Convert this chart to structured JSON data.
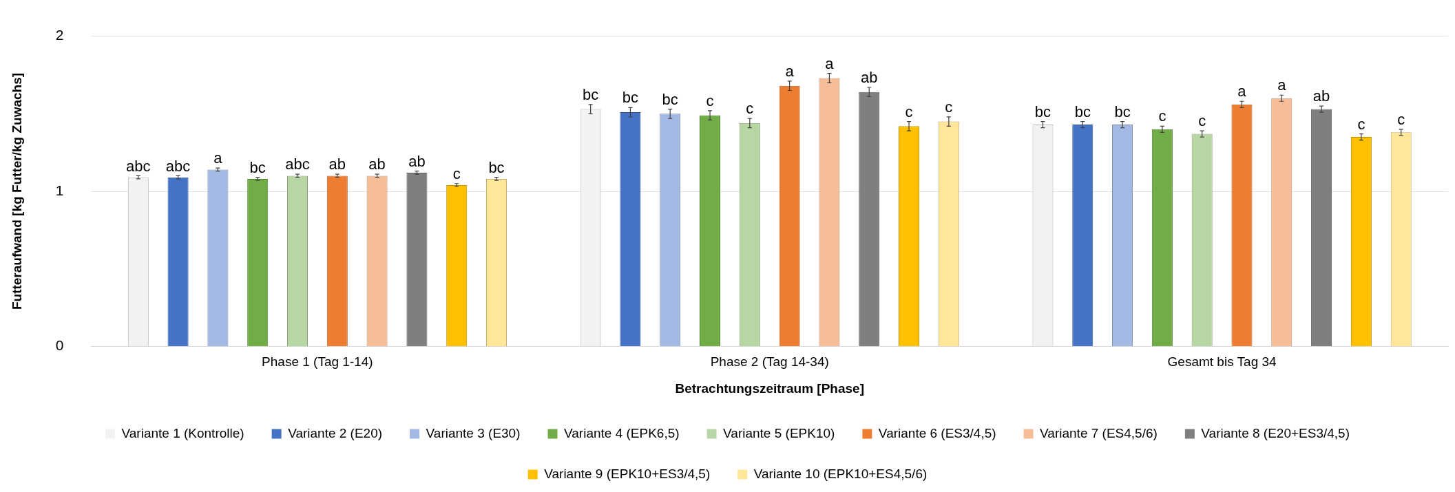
{
  "chart_data": {
    "type": "bar",
    "xlabel": "Betrachtungszeitraum [Phase]",
    "ylabel": "Futteraufwand [kg Futter/kg Zuwachs]",
    "categories": [
      "Phase 1 (Tag 1-14)",
      "Phase 2 (Tag 14-34)",
      "Gesamt bis Tag 34"
    ],
    "ylim": [
      0,
      2
    ],
    "yticks": [
      0,
      1,
      2
    ],
    "grid": "y",
    "legend": "bottom",
    "series": [
      {
        "name": "Variante 1 (Kontrolle)",
        "color": "#f2f2f2",
        "values": [
          1.09,
          1.53,
          1.43
        ],
        "errors": [
          0.01,
          0.03,
          0.02
        ],
        "value_labels": [
          "abc",
          "bc",
          "bc"
        ]
      },
      {
        "name": "Variante 2 (E20)",
        "color": "#4472c4",
        "values": [
          1.09,
          1.51,
          1.43
        ],
        "errors": [
          0.01,
          0.03,
          0.02
        ],
        "value_labels": [
          "abc",
          "bc",
          "bc"
        ]
      },
      {
        "name": "Variante 3 (E30)",
        "color": "#a3b8e2",
        "values": [
          1.14,
          1.5,
          1.43
        ],
        "errors": [
          0.01,
          0.03,
          0.02
        ],
        "value_labels": [
          "a",
          "bc",
          "bc"
        ]
      },
      {
        "name": "Variante 4 (EPK6,5)",
        "color": "#70ad47",
        "values": [
          1.08,
          1.49,
          1.4
        ],
        "errors": [
          0.01,
          0.03,
          0.02
        ],
        "value_labels": [
          "bc",
          "c",
          "c"
        ]
      },
      {
        "name": "Variante 5 (EPK10)",
        "color": "#b8d6a3",
        "values": [
          1.1,
          1.44,
          1.37
        ],
        "errors": [
          0.01,
          0.03,
          0.02
        ],
        "value_labels": [
          "abc",
          "c",
          "c"
        ]
      },
      {
        "name": "Variante 6 (ES3/4,5)",
        "color": "#ed7d31",
        "values": [
          1.1,
          1.68,
          1.56
        ],
        "errors": [
          0.01,
          0.03,
          0.02
        ],
        "value_labels": [
          "ab",
          "a",
          "a"
        ]
      },
      {
        "name": "Variante 7 (ES4,5/6)",
        "color": "#f6be98",
        "values": [
          1.1,
          1.73,
          1.6
        ],
        "errors": [
          0.01,
          0.03,
          0.02
        ],
        "value_labels": [
          "ab",
          "a",
          "a"
        ]
      },
      {
        "name": "Variante 8 (E20+ES3/4,5)",
        "color": "#7f7f7f",
        "values": [
          1.12,
          1.64,
          1.53
        ],
        "errors": [
          0.01,
          0.03,
          0.02
        ],
        "value_labels": [
          "ab",
          "ab",
          "ab"
        ]
      },
      {
        "name": "Variante 9 (EPK10+ES3/4,5)",
        "color": "#ffc000",
        "values": [
          1.04,
          1.42,
          1.35
        ],
        "errors": [
          0.01,
          0.03,
          0.02
        ],
        "value_labels": [
          "c",
          "c",
          "c"
        ]
      },
      {
        "name": "Variante 10 (EPK10+ES4,5/6)",
        "color": "#ffe699",
        "values": [
          1.08,
          1.45,
          1.38
        ],
        "errors": [
          0.01,
          0.03,
          0.02
        ],
        "value_labels": [
          "bc",
          "c",
          "c"
        ]
      }
    ]
  }
}
